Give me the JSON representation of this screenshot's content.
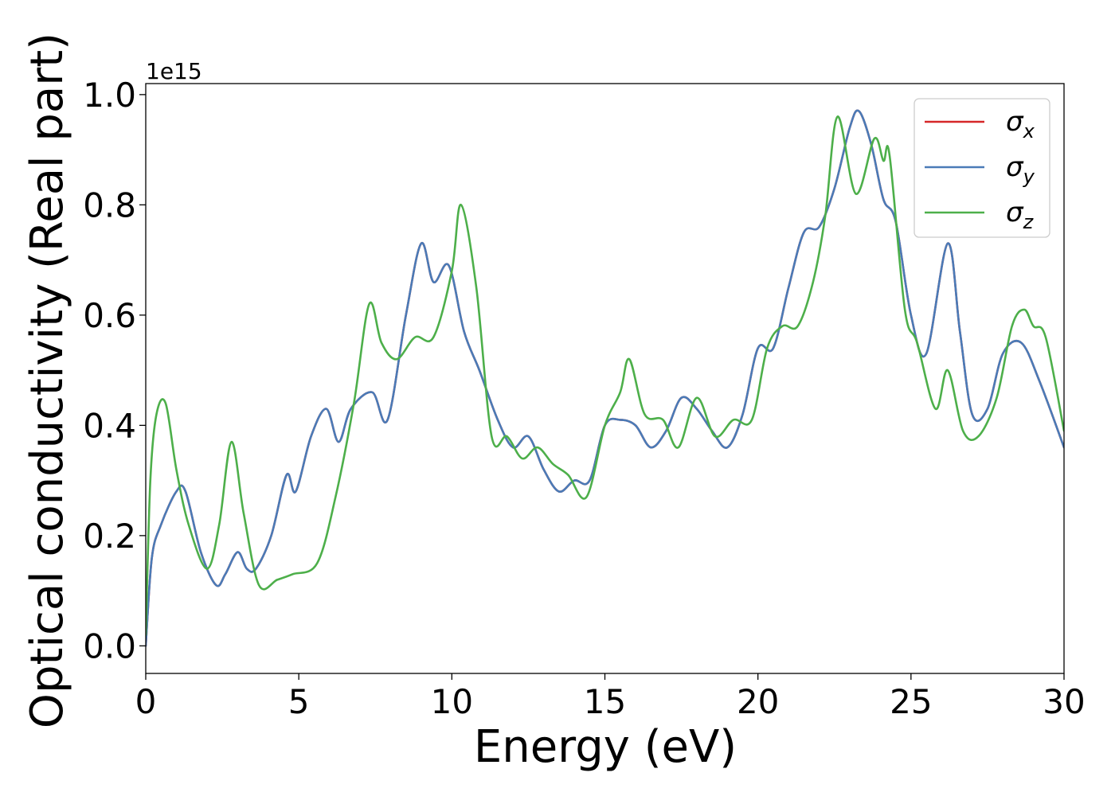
{
  "chart_data": {
    "type": "line",
    "xlabel": "Energy (eV)",
    "ylabel": "Optical conductivity (Real part)",
    "y_offset_text": "1e15",
    "xlim": [
      0,
      30
    ],
    "ylim": [
      -0.05,
      1.02
    ],
    "x_ticks": [
      0,
      5,
      10,
      15,
      20,
      25,
      30
    ],
    "x_tick_labels": [
      "0",
      "5",
      "10",
      "15",
      "20",
      "25",
      "30"
    ],
    "y_ticks": [
      0.0,
      0.2,
      0.4,
      0.6,
      0.8,
      1.0
    ],
    "y_tick_labels": [
      "0.0",
      "0.2",
      "0.4",
      "0.6",
      "0.8",
      "1.0"
    ],
    "grid": false,
    "legend_position": "top-right",
    "series": [
      {
        "name": "σx",
        "symbol": "σ",
        "subscript": "x",
        "color": "#d62728",
        "x": [
          0,
          0.2,
          0.5,
          1.0,
          1.3,
          1.8,
          2.3,
          2.6,
          3.0,
          3.3,
          3.6,
          4.1,
          4.6,
          4.9,
          5.4,
          5.9,
          6.3,
          6.7,
          7.4,
          7.9,
          8.5,
          9.0,
          9.4,
          9.9,
          10.4,
          10.9,
          11.5,
          12.0,
          12.5,
          13.0,
          13.5,
          14.0,
          14.5,
          15.0,
          15.5,
          16.0,
          16.5,
          17.0,
          17.5,
          18.0,
          18.5,
          19.0,
          19.5,
          20.0,
          20.5,
          21.0,
          21.5,
          22.0,
          22.5,
          23.0,
          23.3,
          23.7,
          24.1,
          24.5,
          25.0,
          25.5,
          26.2,
          26.6,
          27.0,
          27.5,
          28.0,
          28.6,
          29.2,
          30.0
        ],
        "y": [
          0.0,
          0.16,
          0.22,
          0.28,
          0.28,
          0.17,
          0.11,
          0.13,
          0.17,
          0.14,
          0.14,
          0.2,
          0.31,
          0.28,
          0.38,
          0.43,
          0.37,
          0.43,
          0.46,
          0.41,
          0.6,
          0.73,
          0.66,
          0.69,
          0.57,
          0.5,
          0.41,
          0.36,
          0.38,
          0.32,
          0.28,
          0.3,
          0.3,
          0.4,
          0.41,
          0.4,
          0.36,
          0.39,
          0.45,
          0.43,
          0.39,
          0.36,
          0.42,
          0.54,
          0.54,
          0.65,
          0.75,
          0.76,
          0.83,
          0.94,
          0.97,
          0.91,
          0.81,
          0.77,
          0.6,
          0.53,
          0.73,
          0.57,
          0.42,
          0.43,
          0.53,
          0.55,
          0.48,
          0.36
        ]
      },
      {
        "name": "σy",
        "symbol": "σ",
        "subscript": "y",
        "color": "#4a7bb7",
        "x": [
          0,
          0.2,
          0.5,
          1.0,
          1.3,
          1.8,
          2.3,
          2.6,
          3.0,
          3.3,
          3.6,
          4.1,
          4.6,
          4.9,
          5.4,
          5.9,
          6.3,
          6.7,
          7.4,
          7.9,
          8.5,
          9.0,
          9.4,
          9.9,
          10.4,
          10.9,
          11.5,
          12.0,
          12.5,
          13.0,
          13.5,
          14.0,
          14.5,
          15.0,
          15.5,
          16.0,
          16.5,
          17.0,
          17.5,
          18.0,
          18.5,
          19.0,
          19.5,
          20.0,
          20.5,
          21.0,
          21.5,
          22.0,
          22.5,
          23.0,
          23.3,
          23.7,
          24.1,
          24.5,
          25.0,
          25.5,
          26.2,
          26.6,
          27.0,
          27.5,
          28.0,
          28.6,
          29.2,
          30.0
        ],
        "y": [
          0.0,
          0.16,
          0.22,
          0.28,
          0.28,
          0.17,
          0.11,
          0.13,
          0.17,
          0.14,
          0.14,
          0.2,
          0.31,
          0.28,
          0.38,
          0.43,
          0.37,
          0.43,
          0.46,
          0.41,
          0.6,
          0.73,
          0.66,
          0.69,
          0.57,
          0.5,
          0.41,
          0.36,
          0.38,
          0.32,
          0.28,
          0.3,
          0.3,
          0.4,
          0.41,
          0.4,
          0.36,
          0.39,
          0.45,
          0.43,
          0.39,
          0.36,
          0.42,
          0.54,
          0.54,
          0.65,
          0.75,
          0.76,
          0.83,
          0.94,
          0.97,
          0.91,
          0.81,
          0.77,
          0.6,
          0.53,
          0.73,
          0.57,
          0.42,
          0.43,
          0.53,
          0.55,
          0.48,
          0.36
        ]
      },
      {
        "name": "σz",
        "symbol": "σ",
        "subscript": "z",
        "color": "#4daf4a",
        "x": [
          0,
          0.15,
          0.35,
          0.65,
          1.0,
          1.4,
          2.0,
          2.4,
          2.8,
          3.2,
          3.7,
          4.3,
          4.8,
          5.6,
          6.2,
          6.8,
          7.3,
          7.7,
          8.2,
          8.8,
          9.4,
          10.0,
          10.3,
          10.8,
          11.3,
          11.8,
          12.3,
          12.8,
          13.3,
          13.8,
          14.4,
          15.0,
          15.5,
          15.8,
          16.3,
          16.9,
          17.4,
          18.0,
          18.6,
          19.2,
          19.8,
          20.3,
          20.8,
          21.3,
          21.8,
          22.2,
          22.6,
          23.2,
          23.8,
          24.1,
          24.3,
          24.8,
          25.2,
          25.8,
          26.2,
          26.7,
          27.2,
          27.8,
          28.3,
          28.7,
          29.0,
          29.4,
          30.0
        ],
        "y": [
          0.02,
          0.3,
          0.42,
          0.44,
          0.32,
          0.22,
          0.14,
          0.22,
          0.37,
          0.24,
          0.11,
          0.12,
          0.13,
          0.15,
          0.27,
          0.44,
          0.62,
          0.55,
          0.52,
          0.56,
          0.56,
          0.68,
          0.8,
          0.65,
          0.38,
          0.38,
          0.34,
          0.36,
          0.33,
          0.31,
          0.27,
          0.4,
          0.46,
          0.52,
          0.42,
          0.41,
          0.36,
          0.45,
          0.38,
          0.41,
          0.41,
          0.54,
          0.58,
          0.58,
          0.66,
          0.78,
          0.96,
          0.82,
          0.92,
          0.88,
          0.89,
          0.61,
          0.55,
          0.43,
          0.5,
          0.39,
          0.38,
          0.45,
          0.58,
          0.61,
          0.58,
          0.56,
          0.39
        ]
      }
    ]
  }
}
